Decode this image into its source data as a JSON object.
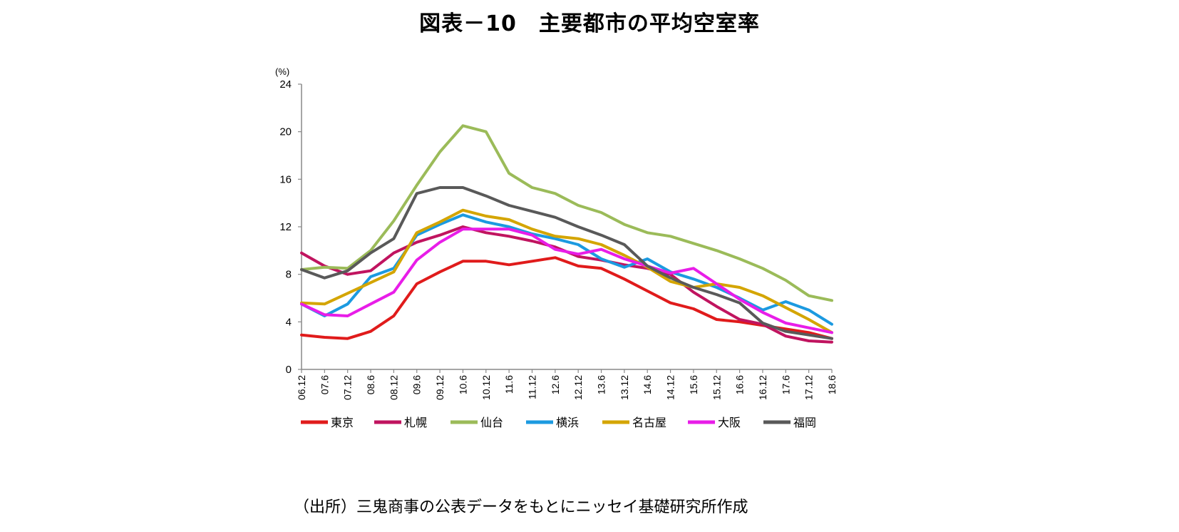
{
  "title": "図表－10　主要都市の平均空室率",
  "source": "（出所）三鬼商事の公表データをもとにニッセイ基礎研究所作成",
  "chart_data": {
    "type": "line",
    "unit_label": "(%)",
    "ylim": [
      0,
      24
    ],
    "yticks": [
      0,
      4,
      8,
      12,
      16,
      20,
      24
    ],
    "x_tick_labels": [
      "06.12",
      "07.6",
      "07.12",
      "08.6",
      "08.12",
      "09.6",
      "09.12",
      "10.6",
      "10.12",
      "11.6",
      "11.12",
      "12.6",
      "12.12",
      "13.6",
      "13.12",
      "14.6",
      "14.12",
      "15.6",
      "15.12",
      "16.6",
      "16.12",
      "17.6",
      "17.12",
      "18.6"
    ],
    "grid": false,
    "legend_position": "bottom",
    "series": [
      {
        "name": "東京",
        "color": "#e01b1b",
        "x": [
          "06.12",
          "07.6",
          "07.12",
          "08.6",
          "08.12",
          "09.6",
          "09.12",
          "10.6",
          "10.12",
          "11.6",
          "11.12",
          "12.6",
          "12.12",
          "13.6",
          "13.12",
          "14.6",
          "14.12",
          "15.6",
          "15.12",
          "16.6",
          "16.12",
          "17.6",
          "17.12",
          "18.6"
        ],
        "y": [
          2.9,
          2.7,
          2.6,
          3.2,
          4.5,
          7.2,
          8.2,
          9.1,
          9.1,
          8.8,
          9.1,
          9.4,
          8.7,
          8.5,
          7.6,
          6.6,
          5.6,
          5.1,
          4.2,
          4.0,
          3.7,
          3.4,
          3.1,
          2.6
        ]
      },
      {
        "name": "札幌",
        "color": "#c0145f",
        "x": [
          "06.12",
          "07.6",
          "07.12",
          "08.6",
          "08.12",
          "09.6",
          "09.12",
          "10.6",
          "10.12",
          "11.6",
          "11.12",
          "12.6",
          "12.12",
          "13.6",
          "13.12",
          "14.6",
          "14.12",
          "15.6",
          "15.12",
          "16.6",
          "16.12",
          "17.6",
          "17.12",
          "18.6"
        ],
        "y": [
          9.8,
          8.7,
          8.0,
          8.3,
          9.8,
          10.7,
          11.3,
          12.0,
          11.5,
          11.2,
          10.8,
          10.3,
          9.5,
          9.2,
          8.8,
          8.5,
          8.0,
          6.5,
          5.3,
          4.2,
          3.8,
          2.8,
          2.4,
          2.3
        ]
      },
      {
        "name": "仙台",
        "color": "#9bbb59",
        "x": [
          "06.12",
          "07.6",
          "07.12",
          "08.6",
          "08.12",
          "09.6",
          "09.12",
          "10.6",
          "10.12",
          "11.6",
          "11.12",
          "12.6",
          "12.12",
          "13.6",
          "13.12",
          "14.6",
          "14.12",
          "15.6",
          "15.12",
          "16.6",
          "16.12",
          "17.6",
          "17.12",
          "18.6"
        ],
        "y": [
          8.4,
          8.6,
          8.5,
          10.0,
          12.5,
          15.5,
          18.3,
          20.5,
          20.0,
          16.5,
          15.3,
          14.8,
          13.8,
          13.2,
          12.2,
          11.5,
          11.2,
          10.6,
          10.0,
          9.3,
          8.5,
          7.5,
          6.2,
          5.8
        ]
      },
      {
        "name": "横浜",
        "color": "#1c9ae0",
        "x": [
          "06.12",
          "07.6",
          "07.12",
          "08.6",
          "08.12",
          "09.6",
          "09.12",
          "10.6",
          "10.12",
          "11.6",
          "11.12",
          "12.6",
          "12.12",
          "13.6",
          "13.12",
          "14.6",
          "14.12",
          "15.6",
          "15.12",
          "16.6",
          "16.12",
          "17.6",
          "17.12",
          "18.6"
        ],
        "y": [
          5.5,
          4.5,
          5.5,
          7.8,
          8.5,
          11.3,
          12.2,
          13.0,
          12.4,
          12.0,
          11.4,
          11.0,
          10.5,
          9.3,
          8.6,
          9.3,
          8.2,
          7.6,
          6.9,
          6.0,
          5.0,
          5.7,
          5.0,
          3.8
        ]
      },
      {
        "name": "名古屋",
        "color": "#d4a500",
        "x": [
          "06.12",
          "07.6",
          "07.12",
          "08.6",
          "08.12",
          "09.6",
          "09.12",
          "10.6",
          "10.12",
          "11.6",
          "11.12",
          "12.6",
          "12.12",
          "13.6",
          "13.12",
          "14.6",
          "14.12",
          "15.6",
          "15.12",
          "16.6",
          "16.12",
          "17.6",
          "17.12",
          "18.6"
        ],
        "y": [
          5.6,
          5.5,
          6.4,
          7.3,
          8.2,
          11.5,
          12.4,
          13.4,
          12.9,
          12.6,
          11.8,
          11.2,
          11.0,
          10.5,
          9.6,
          8.6,
          7.4,
          6.9,
          7.2,
          6.9,
          6.2,
          5.2,
          4.2,
          3.1
        ]
      },
      {
        "name": "大阪",
        "color": "#e81de8",
        "x": [
          "06.12",
          "07.6",
          "07.12",
          "08.6",
          "08.12",
          "09.6",
          "09.12",
          "10.6",
          "10.12",
          "11.6",
          "11.12",
          "12.6",
          "12.12",
          "13.6",
          "13.12",
          "14.6",
          "14.12",
          "15.6",
          "15.12",
          "16.6",
          "16.12",
          "17.6",
          "17.12",
          "18.6"
        ],
        "y": [
          5.5,
          4.6,
          4.5,
          5.5,
          6.5,
          9.2,
          10.7,
          11.8,
          11.8,
          11.8,
          11.3,
          10.1,
          9.7,
          10.1,
          9.3,
          8.7,
          8.1,
          8.5,
          7.2,
          5.9,
          4.8,
          3.9,
          3.5,
          3.1
        ]
      },
      {
        "name": "福岡",
        "color": "#595959",
        "x": [
          "06.12",
          "07.6",
          "07.12",
          "08.6",
          "08.12",
          "09.6",
          "09.12",
          "10.6",
          "10.12",
          "11.6",
          "11.12",
          "12.6",
          "12.12",
          "13.6",
          "13.12",
          "14.6",
          "14.12",
          "15.6",
          "15.12",
          "16.6",
          "16.12",
          "17.6",
          "17.12",
          "18.6"
        ],
        "y": [
          8.4,
          7.7,
          8.3,
          9.8,
          11.0,
          14.8,
          15.3,
          15.3,
          14.6,
          13.8,
          13.3,
          12.8,
          12.0,
          11.3,
          10.5,
          8.7,
          7.7,
          6.9,
          6.3,
          5.6,
          3.9,
          3.2,
          2.9,
          2.6
        ]
      }
    ]
  }
}
